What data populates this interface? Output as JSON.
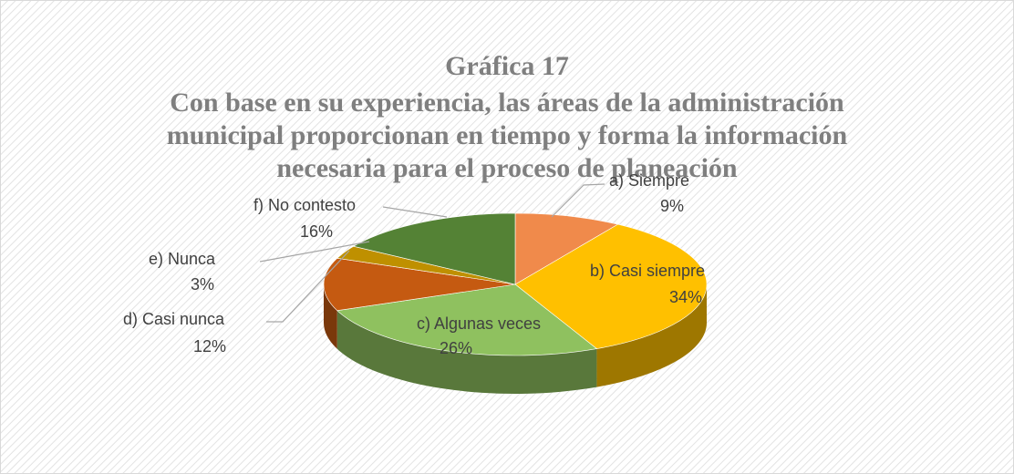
{
  "chart_data": {
    "type": "pie3d",
    "title": "Gráfica 17",
    "subtitle": [
      "Con base en su experiencia, las áreas de la administración",
      "municipal proporcionan  en tiempo y forma la información",
      "necesaria para el proceso de planeación"
    ],
    "categories": [
      "a) Siempre",
      "b) Casi siempre",
      "c) Algunas veces",
      "d) Casi nunca",
      "e) Nunca",
      "f) No contesto"
    ],
    "values": [
      9,
      34,
      26,
      12,
      3,
      16
    ],
    "value_labels": [
      "9%",
      "34%",
      "26%",
      "12%",
      "3%",
      "16%"
    ],
    "colors": [
      "#f08a4b",
      "#ffc000",
      "#8fc15f",
      "#c55a11",
      "#bf9000",
      "#548235"
    ]
  }
}
